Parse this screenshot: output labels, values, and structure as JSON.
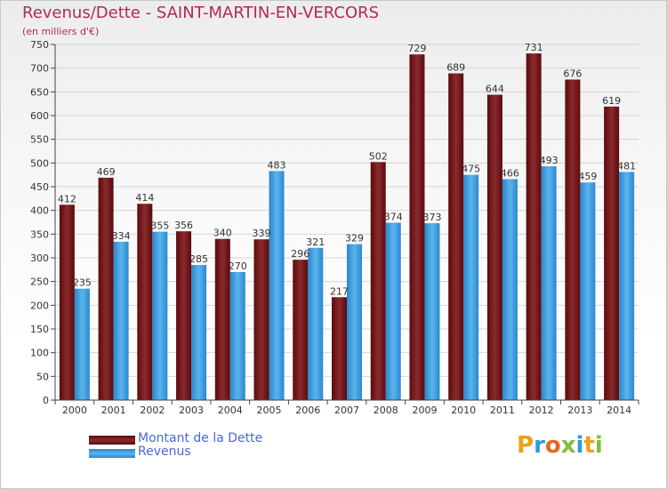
{
  "title": "Revenus/Dette - SAINT-MARTIN-EN-VERCORS",
  "subtitle": "(en milliers d'€)",
  "logo_text": "Proxiti",
  "chart_data": {
    "type": "bar",
    "categories": [
      "2000",
      "2001",
      "2002",
      "2003",
      "2004",
      "2005",
      "2006",
      "2007",
      "2008",
      "2009",
      "2010",
      "2011",
      "2012",
      "2013",
      "2014"
    ],
    "series": [
      {
        "name": "Montant de la Dette",
        "color": "#7a1a1e",
        "values": [
          412,
          469,
          414,
          356,
          340,
          339,
          296,
          217,
          502,
          729,
          689,
          644,
          731,
          676,
          619
        ]
      },
      {
        "name": "Revenus",
        "color": "#3a9ee0",
        "values": [
          235,
          334,
          355,
          285,
          270,
          483,
          321,
          329,
          374,
          373,
          475,
          466,
          493,
          459,
          481
        ]
      }
    ],
    "ylim": [
      0,
      750
    ],
    "yticks": [
      0,
      50,
      100,
      150,
      200,
      250,
      300,
      350,
      400,
      450,
      500,
      550,
      600,
      650,
      700,
      750
    ],
    "grid": true,
    "legend": "bottom-left"
  }
}
